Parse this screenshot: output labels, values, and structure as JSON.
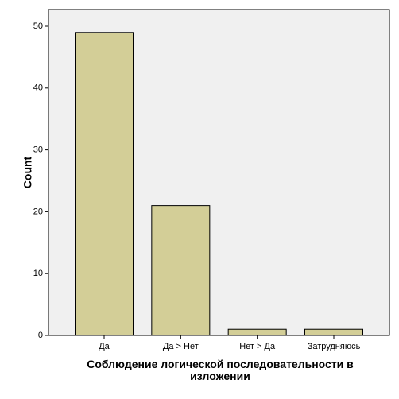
{
  "chart_data": {
    "type": "bar",
    "x_label": "Соблюдение логической последовательности в изложении",
    "y_label": "Count",
    "categories": [
      "Да",
      "Да > Нет",
      "Нет > Да",
      "Затрудняюсь"
    ],
    "values": [
      49,
      21,
      1,
      1
    ],
    "color": "#d3ce97",
    "ylim": [
      0,
      52.7
    ],
    "yticks": [
      0,
      10,
      20,
      30,
      40,
      50
    ],
    "grid": false
  }
}
